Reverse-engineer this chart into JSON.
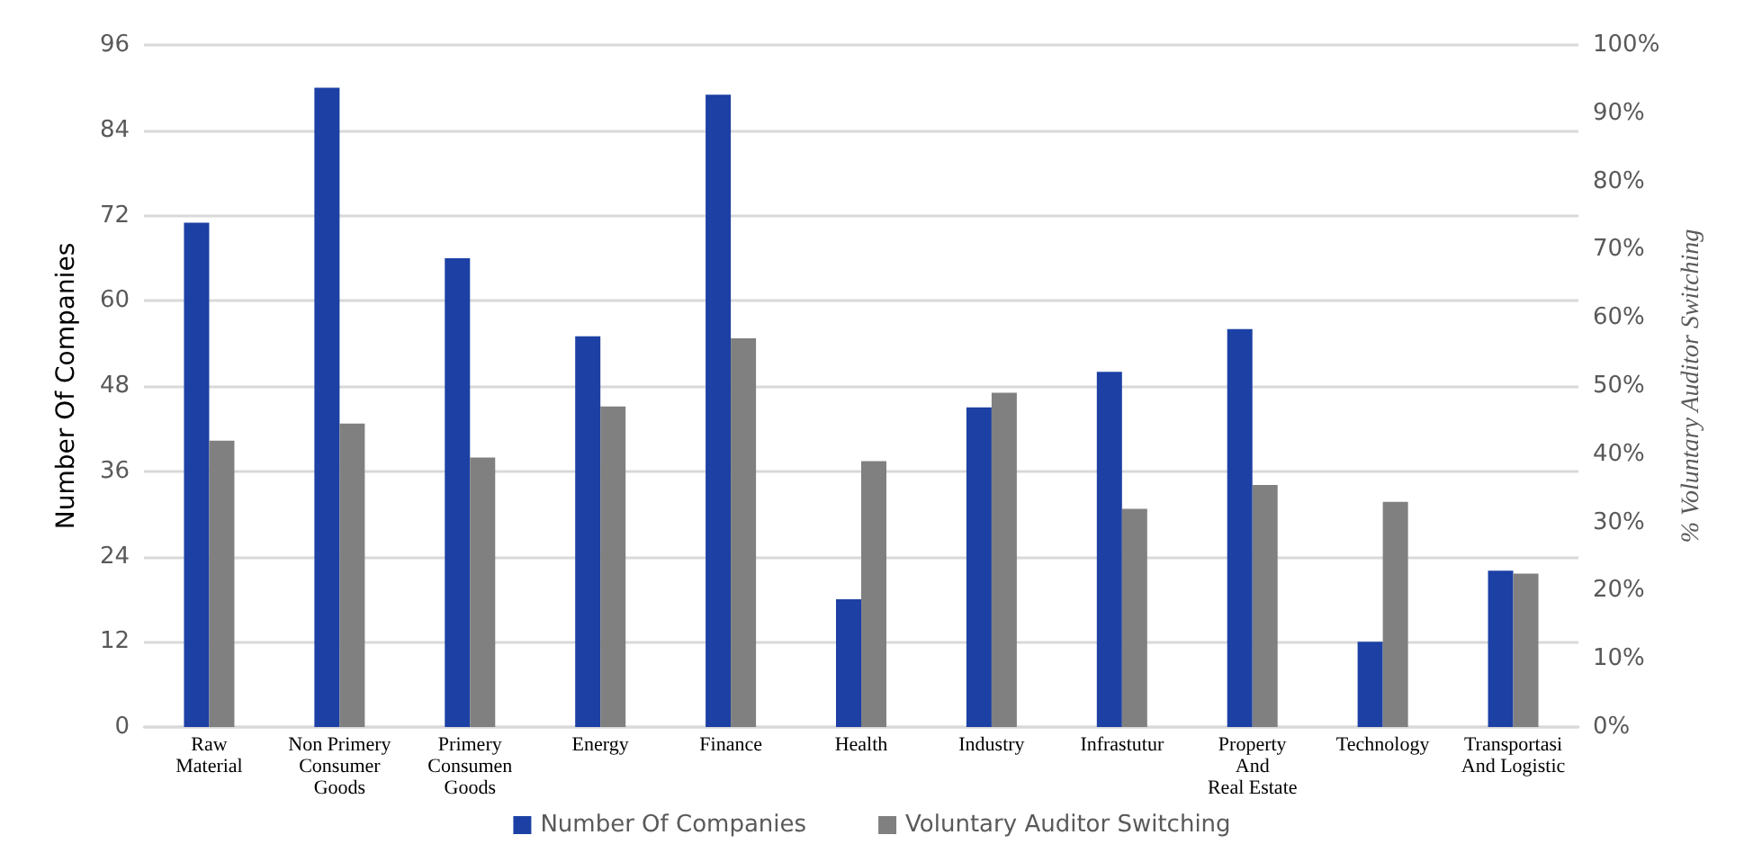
{
  "chart_data": {
    "type": "bar",
    "ylabel": "Number Of Companies",
    "y2label": "% Voluntary Auditor Switching",
    "categories": [
      "Raw\nMaterial",
      "Non Primery\nConsumer\nGoods",
      "Primery\nConsumen\nGoods",
      "Energy",
      "Finance",
      "Health",
      "Industry",
      "Infrastutur",
      "Property\nAnd\nReal Estate",
      "Technology",
      "Transportasi\nAnd Logistic"
    ],
    "series": [
      {
        "name": "Number Of Companies",
        "color": "#1c40a4",
        "values": [
          71,
          90,
          66,
          55,
          89,
          18,
          45,
          50,
          56,
          12,
          22
        ]
      },
      {
        "name": "Voluntary Auditor Switching",
        "color": "#808080",
        "axis": "y2",
        "values": [
          42,
          44.5,
          39.5,
          47,
          57,
          39,
          49,
          32,
          35.5,
          33,
          22.5
        ]
      }
    ],
    "ylim": [
      0,
      96
    ],
    "yticks": [
      0,
      12,
      24,
      36,
      48,
      60,
      72,
      84,
      96
    ],
    "y2lim": [
      0,
      100
    ],
    "y2ticks": [
      {
        "value": 0,
        "label": "0%"
      },
      {
        "value": 10,
        "label": "10%"
      },
      {
        "value": 20,
        "label": "20%"
      },
      {
        "value": 30,
        "label": "30%"
      },
      {
        "value": 40,
        "label": "40%"
      },
      {
        "value": 50,
        "label": "50%"
      },
      {
        "value": 60,
        "label": "60%"
      },
      {
        "value": 70,
        "label": "70%"
      },
      {
        "value": 80,
        "label": "80%"
      },
      {
        "value": 90,
        "label": "90%"
      },
      {
        "value": 100,
        "label": "100%"
      }
    ],
    "grid": "y",
    "legend": "bottom"
  }
}
